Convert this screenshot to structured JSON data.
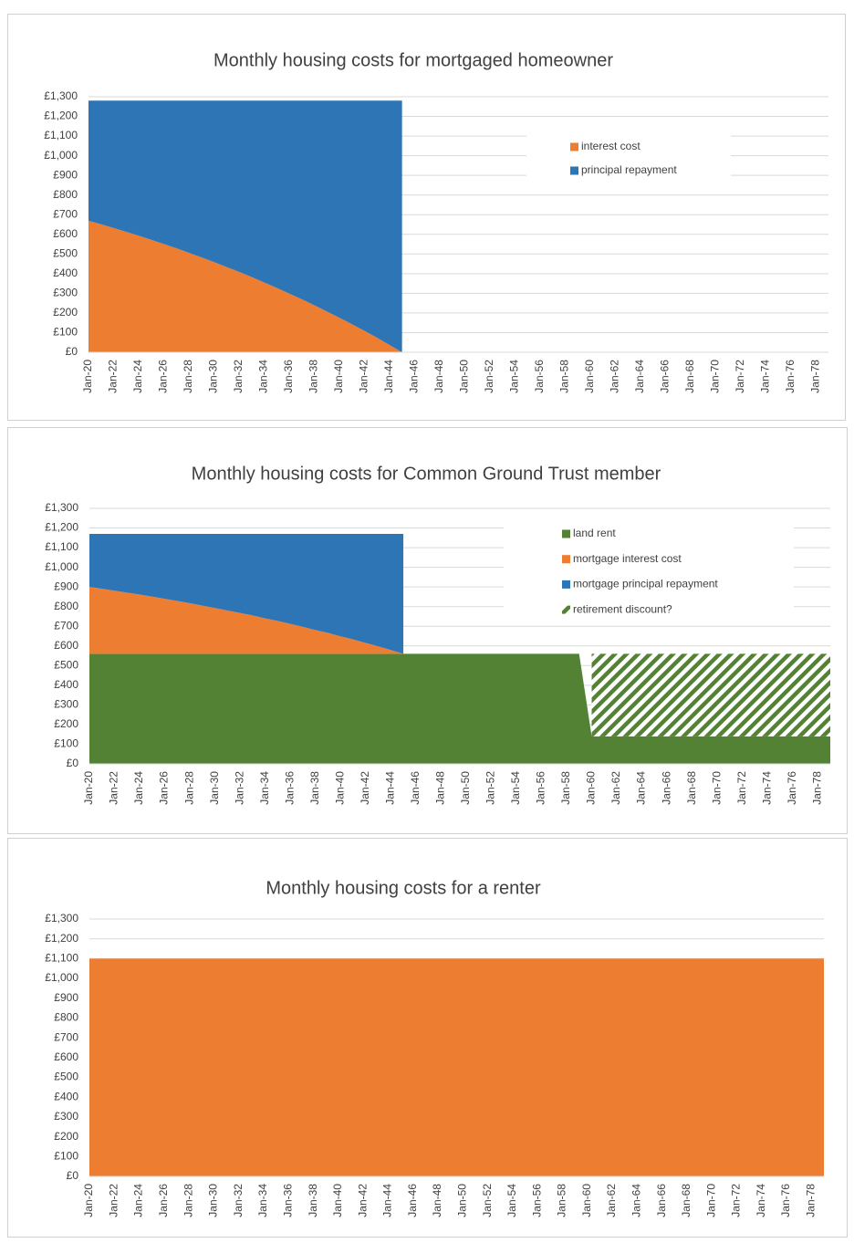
{
  "chart_data": [
    {
      "type": "area",
      "title": "Monthly housing costs for mortgaged homeowner",
      "categories": [
        "Jan-20",
        null,
        "Jan-22",
        null,
        "Jan-24",
        null,
        "Jan-26",
        null,
        "Jan-28",
        null,
        "Jan-30",
        null,
        "Jan-32",
        null,
        "Jan-34",
        null,
        "Jan-36",
        null,
        "Jan-38",
        null,
        "Jan-40",
        null,
        "Jan-42",
        null,
        "Jan-44",
        null,
        "Jan-46",
        null,
        "Jan-48",
        null,
        "Jan-50",
        null,
        "Jan-52",
        null,
        "Jan-54",
        null,
        "Jan-56",
        null,
        "Jan-58",
        null,
        "Jan-60",
        null,
        "Jan-62",
        null,
        "Jan-64",
        null,
        "Jan-66",
        null,
        "Jan-68",
        null,
        "Jan-70",
        null,
        "Jan-72",
        null,
        "Jan-74",
        null,
        "Jan-76",
        null,
        "Jan-78",
        null
      ],
      "series": [
        {
          "name": "interest cost",
          "color": "#ed7d31",
          "values": [
            669,
            651,
            632,
            613,
            593,
            572,
            551,
            529,
            506,
            483,
            459,
            434,
            409,
            383,
            355,
            328,
            299,
            270,
            239,
            208,
            176,
            143,
            109,
            74,
            37,
            0,
            null,
            null,
            null,
            null,
            null,
            null,
            null,
            null,
            null,
            null,
            null,
            null,
            null,
            null,
            null,
            null,
            null,
            null,
            null,
            null,
            null,
            null,
            null,
            null,
            null,
            null,
            null,
            null,
            null,
            null,
            null,
            null,
            null,
            null
          ]
        },
        {
          "name": "principal repayment",
          "color": "#2e75b6",
          "values": [
            611,
            629,
            648,
            667,
            687,
            708,
            729,
            751,
            774,
            797,
            821,
            846,
            871,
            897,
            925,
            952,
            981,
            1010,
            1041,
            1072,
            1104,
            1137,
            1171,
            1206,
            1243,
            1280,
            null,
            null,
            null,
            null,
            null,
            null,
            null,
            null,
            null,
            null,
            null,
            null,
            null,
            null,
            null,
            null,
            null,
            null,
            null,
            null,
            null,
            null,
            null,
            null,
            null,
            null,
            null,
            null,
            null,
            null,
            null,
            null,
            null,
            null
          ]
        }
      ],
      "stacked": true,
      "ylim": [
        0,
        1300
      ],
      "yticks": [
        {
          "value": 0,
          "label": "£0"
        },
        {
          "value": 100,
          "label": "£100"
        },
        {
          "value": 200,
          "label": "£200"
        },
        {
          "value": 300,
          "label": "£300"
        },
        {
          "value": 400,
          "label": "£400"
        },
        {
          "value": 500,
          "label": "£500"
        },
        {
          "value": 600,
          "label": "£600"
        },
        {
          "value": 700,
          "label": "£700"
        },
        {
          "value": 800,
          "label": "£800"
        },
        {
          "value": 900,
          "label": "£900"
        },
        {
          "value": 1000,
          "label": "£1,000"
        },
        {
          "value": 1100,
          "label": "£1,100"
        },
        {
          "value": 1200,
          "label": "£1,200"
        },
        {
          "value": 1300,
          "label": "£1,300"
        }
      ],
      "grid": true,
      "legend": "upper right"
    },
    {
      "type": "area",
      "title": "Monthly housing costs for Common Ground Trust member",
      "categories": [
        "Jan-20",
        null,
        "Jan-22",
        null,
        "Jan-24",
        null,
        "Jan-26",
        null,
        "Jan-28",
        null,
        "Jan-30",
        null,
        "Jan-32",
        null,
        "Jan-34",
        null,
        "Jan-36",
        null,
        "Jan-38",
        null,
        "Jan-40",
        null,
        "Jan-42",
        null,
        "Jan-44",
        null,
        "Jan-46",
        null,
        "Jan-48",
        null,
        "Jan-50",
        null,
        "Jan-52",
        null,
        "Jan-54",
        null,
        "Jan-56",
        null,
        "Jan-58",
        null,
        "Jan-60",
        null,
        "Jan-62",
        null,
        "Jan-64",
        null,
        "Jan-66",
        null,
        "Jan-68",
        null,
        "Jan-70",
        null,
        "Jan-72",
        null,
        "Jan-74",
        null,
        "Jan-76",
        null,
        "Jan-78",
        null
      ],
      "series": [
        {
          "name": "land rent",
          "color": "#548235",
          "values": [
            560,
            560,
            560,
            560,
            560,
            560,
            560,
            560,
            560,
            560,
            560,
            560,
            560,
            560,
            560,
            560,
            560,
            560,
            560,
            560,
            560,
            560,
            560,
            560,
            560,
            560,
            560,
            560,
            560,
            560,
            560,
            560,
            560,
            560,
            560,
            560,
            560,
            560,
            560,
            560,
            140,
            140,
            140,
            140,
            140,
            140,
            140,
            140,
            140,
            140,
            140,
            140,
            140,
            140,
            140,
            140,
            140,
            140,
            140,
            140
          ]
        },
        {
          "name": "mortgage interest cost",
          "color": "#ed7d31",
          "values": [
            340,
            331,
            321,
            311,
            301,
            291,
            280,
            269,
            257,
            245,
            233,
            220,
            208,
            195,
            180,
            167,
            152,
            137,
            121,
            106,
            89,
            73,
            55,
            38,
            19,
            0,
            null,
            null,
            null,
            null,
            null,
            null,
            null,
            null,
            null,
            null,
            null,
            null,
            null,
            null,
            null,
            null,
            null,
            null,
            null,
            null,
            null,
            null,
            null,
            null,
            null,
            null,
            null,
            null,
            null,
            null,
            null,
            null,
            null,
            null
          ]
        },
        {
          "name": "mortgage principal repayment",
          "color": "#2e75b6",
          "values": [
            270,
            279,
            289,
            299,
            309,
            319,
            330,
            341,
            353,
            365,
            377,
            390,
            402,
            415,
            430,
            443,
            458,
            473,
            489,
            504,
            521,
            537,
            555,
            572,
            591,
            610,
            null,
            null,
            null,
            null,
            null,
            null,
            null,
            null,
            null,
            null,
            null,
            null,
            null,
            null,
            null,
            null,
            null,
            null,
            null,
            null,
            null,
            null,
            null,
            null,
            null,
            null,
            null,
            null,
            null,
            null,
            null,
            null,
            null,
            null
          ]
        },
        {
          "name": "retirement discount?",
          "color": "#548235",
          "hatch": true,
          "values": [
            null,
            null,
            null,
            null,
            null,
            null,
            null,
            null,
            null,
            null,
            null,
            null,
            null,
            null,
            null,
            null,
            null,
            null,
            null,
            null,
            null,
            null,
            null,
            null,
            null,
            null,
            null,
            null,
            null,
            null,
            null,
            null,
            null,
            null,
            null,
            null,
            null,
            null,
            null,
            null,
            420,
            420,
            420,
            420,
            420,
            420,
            420,
            420,
            420,
            420,
            420,
            420,
            420,
            420,
            420,
            420,
            420,
            420,
            420,
            420
          ]
        }
      ],
      "stacked": true,
      "ylim": [
        0,
        1300
      ],
      "yticks": [
        {
          "value": 0,
          "label": "£0"
        },
        {
          "value": 100,
          "label": "£100"
        },
        {
          "value": 200,
          "label": "£200"
        },
        {
          "value": 300,
          "label": "£300"
        },
        {
          "value": 400,
          "label": "£400"
        },
        {
          "value": 500,
          "label": "£500"
        },
        {
          "value": 600,
          "label": "£600"
        },
        {
          "value": 700,
          "label": "£700"
        },
        {
          "value": 800,
          "label": "£800"
        },
        {
          "value": 900,
          "label": "£900"
        },
        {
          "value": 1000,
          "label": "£1,000"
        },
        {
          "value": 1100,
          "label": "£1,100"
        },
        {
          "value": 1200,
          "label": "£1,200"
        },
        {
          "value": 1300,
          "label": "£1,300"
        }
      ],
      "grid": true,
      "legend": "upper right"
    },
    {
      "type": "area",
      "title": "Monthly housing costs for a renter",
      "categories": [
        "Jan-20",
        null,
        "Jan-22",
        null,
        "Jan-24",
        null,
        "Jan-26",
        null,
        "Jan-28",
        null,
        "Jan-30",
        null,
        "Jan-32",
        null,
        "Jan-34",
        null,
        "Jan-36",
        null,
        "Jan-38",
        null,
        "Jan-40",
        null,
        "Jan-42",
        null,
        "Jan-44",
        null,
        "Jan-46",
        null,
        "Jan-48",
        null,
        "Jan-50",
        null,
        "Jan-52",
        null,
        "Jan-54",
        null,
        "Jan-56",
        null,
        "Jan-58",
        null,
        "Jan-60",
        null,
        "Jan-62",
        null,
        "Jan-64",
        null,
        "Jan-66",
        null,
        "Jan-68",
        null,
        "Jan-70",
        null,
        "Jan-72",
        null,
        "Jan-74",
        null,
        "Jan-76",
        null,
        "Jan-78",
        null
      ],
      "series": [
        {
          "color": "#ed7d31",
          "values": [
            1100,
            1100,
            1100,
            1100,
            1100,
            1100,
            1100,
            1100,
            1100,
            1100,
            1100,
            1100,
            1100,
            1100,
            1100,
            1100,
            1100,
            1100,
            1100,
            1100,
            1100,
            1100,
            1100,
            1100,
            1100,
            1100,
            1100,
            1100,
            1100,
            1100,
            1100,
            1100,
            1100,
            1100,
            1100,
            1100,
            1100,
            1100,
            1100,
            1100,
            1100,
            1100,
            1100,
            1100,
            1100,
            1100,
            1100,
            1100,
            1100,
            1100,
            1100,
            1100,
            1100,
            1100,
            1100,
            1100,
            1100,
            1100,
            1100,
            1100
          ]
        }
      ],
      "stacked": true,
      "ylim": [
        0,
        1300
      ],
      "yticks": [
        {
          "value": 0,
          "label": "£0"
        },
        {
          "value": 100,
          "label": "£100"
        },
        {
          "value": 200,
          "label": "£200"
        },
        {
          "value": 300,
          "label": "£300"
        },
        {
          "value": 400,
          "label": "£400"
        },
        {
          "value": 500,
          "label": "£500"
        },
        {
          "value": 600,
          "label": "£600"
        },
        {
          "value": 700,
          "label": "£700"
        },
        {
          "value": 800,
          "label": "£800"
        },
        {
          "value": 900,
          "label": "£900"
        },
        {
          "value": 1000,
          "label": "£1,000"
        },
        {
          "value": 1100,
          "label": "£1,100"
        },
        {
          "value": 1200,
          "label": "£1,200"
        },
        {
          "value": 1300,
          "label": "£1,300"
        }
      ],
      "grid": true
    }
  ]
}
